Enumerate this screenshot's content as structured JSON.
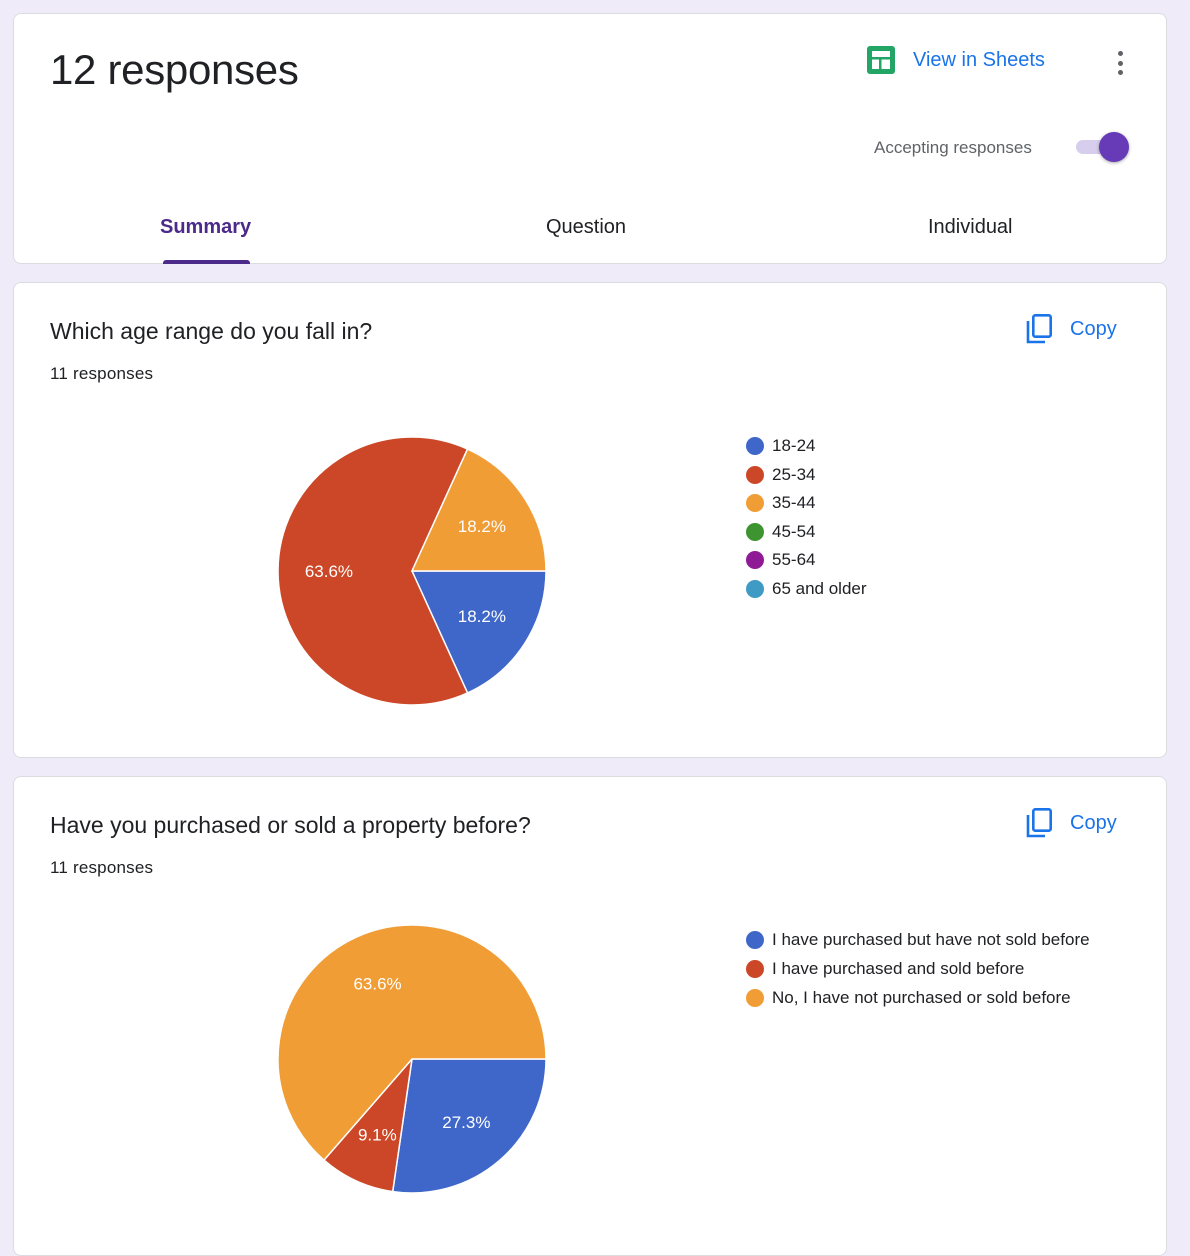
{
  "header": {
    "title": "12 responses",
    "sheets_label": "View in Sheets",
    "sheets_icon": "sheets-icon",
    "more_icon": "more-vert-icon",
    "accepting_label": "Accepting responses",
    "accepting_on": true,
    "tabs": [
      {
        "label": "Summary",
        "active": true
      },
      {
        "label": "Question",
        "active": false
      },
      {
        "label": "Individual",
        "active": false
      }
    ]
  },
  "questions": [
    {
      "title": "Which age range do you fall in?",
      "responses_label": "11 responses",
      "copy_label": "Copy",
      "copy_icon": "copy-icon"
    },
    {
      "title": "Have you purchased or sold a property before?",
      "responses_label": "11 responses",
      "copy_label": "Copy",
      "copy_icon": "copy-icon"
    }
  ],
  "chart_data": [
    {
      "type": "pie",
      "categories": [
        "18-24",
        "25-34",
        "35-44",
        "45-54",
        "55-64",
        "65 and older"
      ],
      "values": [
        18.2,
        63.6,
        18.2,
        0,
        0,
        0
      ],
      "labels": [
        "18.2%",
        "63.6%",
        "18.2%",
        "",
        "",
        ""
      ],
      "colors": [
        "#3f67c9",
        "#cc4727",
        "#f09d36",
        "#3d9431",
        "#8e1a96",
        "#3f9ac4"
      ],
      "legend_position": "right"
    },
    {
      "type": "pie",
      "categories": [
        "I have purchased but have not sold before",
        "I have purchased and sold before",
        "No, I have not purchased or sold before"
      ],
      "values": [
        27.3,
        9.1,
        63.6
      ],
      "labels": [
        "27.3%",
        "9.1%",
        "63.6%"
      ],
      "colors": [
        "#3f67c9",
        "#cc4727",
        "#f09d36"
      ],
      "legend_position": "right"
    }
  ]
}
